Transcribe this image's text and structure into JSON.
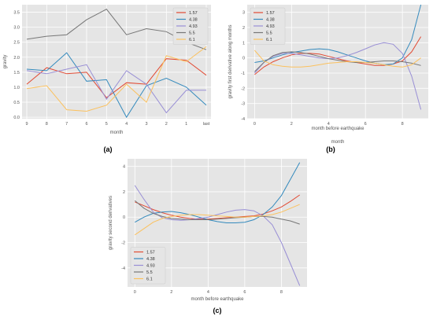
{
  "panel_labels": [
    "(a)",
    "(b)",
    "(c)"
  ],
  "series_colors": {
    "1.57": "#e24a33",
    "4.38": "#348abd",
    "4.93": "#988ed5",
    "5.5": "#777777",
    "6.1": "#fbc15e"
  },
  "chart_data": [
    {
      "panel": "(a)",
      "type": "line",
      "xlabel": "month",
      "ylabel": "gravity",
      "categories": [
        "9",
        "8",
        "7",
        "6",
        "5",
        "4",
        "3",
        "2",
        "1",
        "last"
      ],
      "ylim": [
        -0.05,
        3.75
      ],
      "yticks": [
        "0.0",
        "0.5",
        "1.0",
        "1.5",
        "2.0",
        "2.5",
        "3.0",
        "3.5"
      ],
      "grid": true,
      "legend_position": "top-right",
      "series": [
        {
          "name": "1.57",
          "values": [
            1.1,
            1.65,
            1.45,
            1.5,
            0.65,
            1.15,
            1.1,
            1.95,
            1.9,
            1.4
          ]
        },
        {
          "name": "4.38",
          "values": [
            1.6,
            1.55,
            2.15,
            1.2,
            1.25,
            0.0,
            1.05,
            1.3,
            1.0,
            0.4
          ]
        },
        {
          "name": "4.93",
          "values": [
            1.55,
            1.45,
            1.6,
            1.75,
            0.6,
            1.55,
            1.1,
            0.15,
            0.9,
            0.9
          ]
        },
        {
          "name": "5.5",
          "values": [
            2.6,
            2.7,
            2.75,
            3.25,
            3.6,
            2.75,
            2.95,
            2.85,
            2.5,
            2.25
          ]
        },
        {
          "name": "6.1",
          "values": [
            0.95,
            1.05,
            0.25,
            0.2,
            0.4,
            1.1,
            0.5,
            2.05,
            1.85,
            2.35
          ]
        }
      ]
    },
    {
      "panel": "(b)",
      "type": "line",
      "xlabel": "month before earthquake",
      "ylabel": "gravity first derivative along months",
      "secondary_label": "month",
      "x": [
        0,
        0.5,
        1,
        1.5,
        2,
        2.5,
        3,
        3.5,
        4,
        4.5,
        5,
        5.5,
        6,
        6.5,
        7,
        7.5,
        8,
        8.5,
        9
      ],
      "xticks": [
        "0",
        "2",
        "4",
        "6",
        "8"
      ],
      "ylim": [
        -4,
        3.5
      ],
      "yticks": [
        "-4",
        "-3",
        "-2",
        "-1",
        "0",
        "1",
        "2",
        "3"
      ],
      "grid": true,
      "legend_position": "top-left",
      "series": [
        {
          "name": "1.57",
          "values": [
            -1.1,
            -0.6,
            -0.25,
            0.0,
            0.2,
            0.3,
            0.3,
            0.25,
            0.1,
            -0.05,
            -0.2,
            -0.3,
            -0.4,
            -0.5,
            -0.5,
            -0.4,
            -0.2,
            0.4,
            1.4
          ]
        },
        {
          "name": "4.38",
          "values": [
            -0.3,
            -0.2,
            0.0,
            0.2,
            0.35,
            0.45,
            0.55,
            0.6,
            0.55,
            0.4,
            0.2,
            0.0,
            -0.2,
            -0.35,
            -0.45,
            -0.4,
            0.0,
            1.2,
            3.5
          ]
        },
        {
          "name": "4.93",
          "values": [
            -1.0,
            -0.3,
            0.1,
            0.3,
            0.3,
            0.2,
            0.1,
            0.0,
            -0.05,
            0.0,
            0.15,
            0.35,
            0.6,
            0.85,
            1.0,
            0.9,
            0.3,
            -1.2,
            -3.4
          ]
        },
        {
          "name": "5.5",
          "values": [
            -0.9,
            -0.3,
            0.15,
            0.35,
            0.4,
            0.35,
            0.25,
            0.1,
            -0.05,
            -0.15,
            -0.25,
            -0.3,
            -0.3,
            -0.25,
            -0.2,
            -0.2,
            -0.25,
            -0.35,
            -0.5
          ]
        },
        {
          "name": "6.1",
          "values": [
            0.5,
            -0.2,
            -0.45,
            -0.55,
            -0.6,
            -0.6,
            -0.55,
            -0.45,
            -0.35,
            -0.3,
            -0.25,
            -0.25,
            -0.3,
            -0.35,
            -0.45,
            -0.55,
            -0.6,
            -0.45,
            0.0
          ]
        }
      ]
    },
    {
      "panel": "(c)",
      "type": "line",
      "xlabel": "month before earthquake",
      "ylabel": "gravity second derivatives",
      "x": [
        0,
        0.5,
        1,
        1.5,
        2,
        2.5,
        3,
        3.5,
        4,
        4.5,
        5,
        5.5,
        6,
        6.5,
        7,
        7.5,
        8,
        8.5,
        9
      ],
      "xticks": [
        "0",
        "2",
        "4",
        "6",
        "8"
      ],
      "ylim": [
        -5.5,
        4.6
      ],
      "yticks": [
        "-4",
        "-2",
        "0",
        "2",
        "4"
      ],
      "grid": true,
      "legend_position": "bottom-left",
      "series": [
        {
          "name": "1.57",
          "values": [
            1.2,
            0.9,
            0.6,
            0.35,
            0.15,
            0.0,
            -0.1,
            -0.15,
            -0.15,
            -0.1,
            -0.05,
            0.0,
            0.05,
            0.1,
            0.25,
            0.5,
            0.8,
            1.25,
            1.75
          ]
        },
        {
          "name": "4.38",
          "values": [
            -0.4,
            0.0,
            0.3,
            0.4,
            0.45,
            0.35,
            0.2,
            0.0,
            -0.2,
            -0.35,
            -0.45,
            -0.45,
            -0.4,
            -0.2,
            0.2,
            0.8,
            1.7,
            3.0,
            4.3
          ]
        },
        {
          "name": "4.93",
          "values": [
            2.5,
            1.4,
            0.4,
            -0.05,
            -0.2,
            -0.25,
            -0.2,
            -0.1,
            0.0,
            0.2,
            0.4,
            0.55,
            0.6,
            0.5,
            0.1,
            -0.6,
            -2.0,
            -3.7,
            -5.4
          ]
        },
        {
          "name": "5.5",
          "values": [
            1.3,
            0.7,
            0.3,
            0.05,
            -0.1,
            -0.15,
            -0.2,
            -0.2,
            -0.2,
            -0.15,
            -0.1,
            -0.05,
            0.0,
            0.05,
            0.05,
            0.0,
            -0.15,
            -0.3,
            -0.55
          ]
        },
        {
          "name": "6.1",
          "values": [
            -1.4,
            -0.9,
            -0.4,
            -0.1,
            0.05,
            0.15,
            0.2,
            0.2,
            0.15,
            0.1,
            0.05,
            0.0,
            0.0,
            0.05,
            0.1,
            0.2,
            0.4,
            0.7,
            1.0
          ]
        }
      ]
    }
  ]
}
